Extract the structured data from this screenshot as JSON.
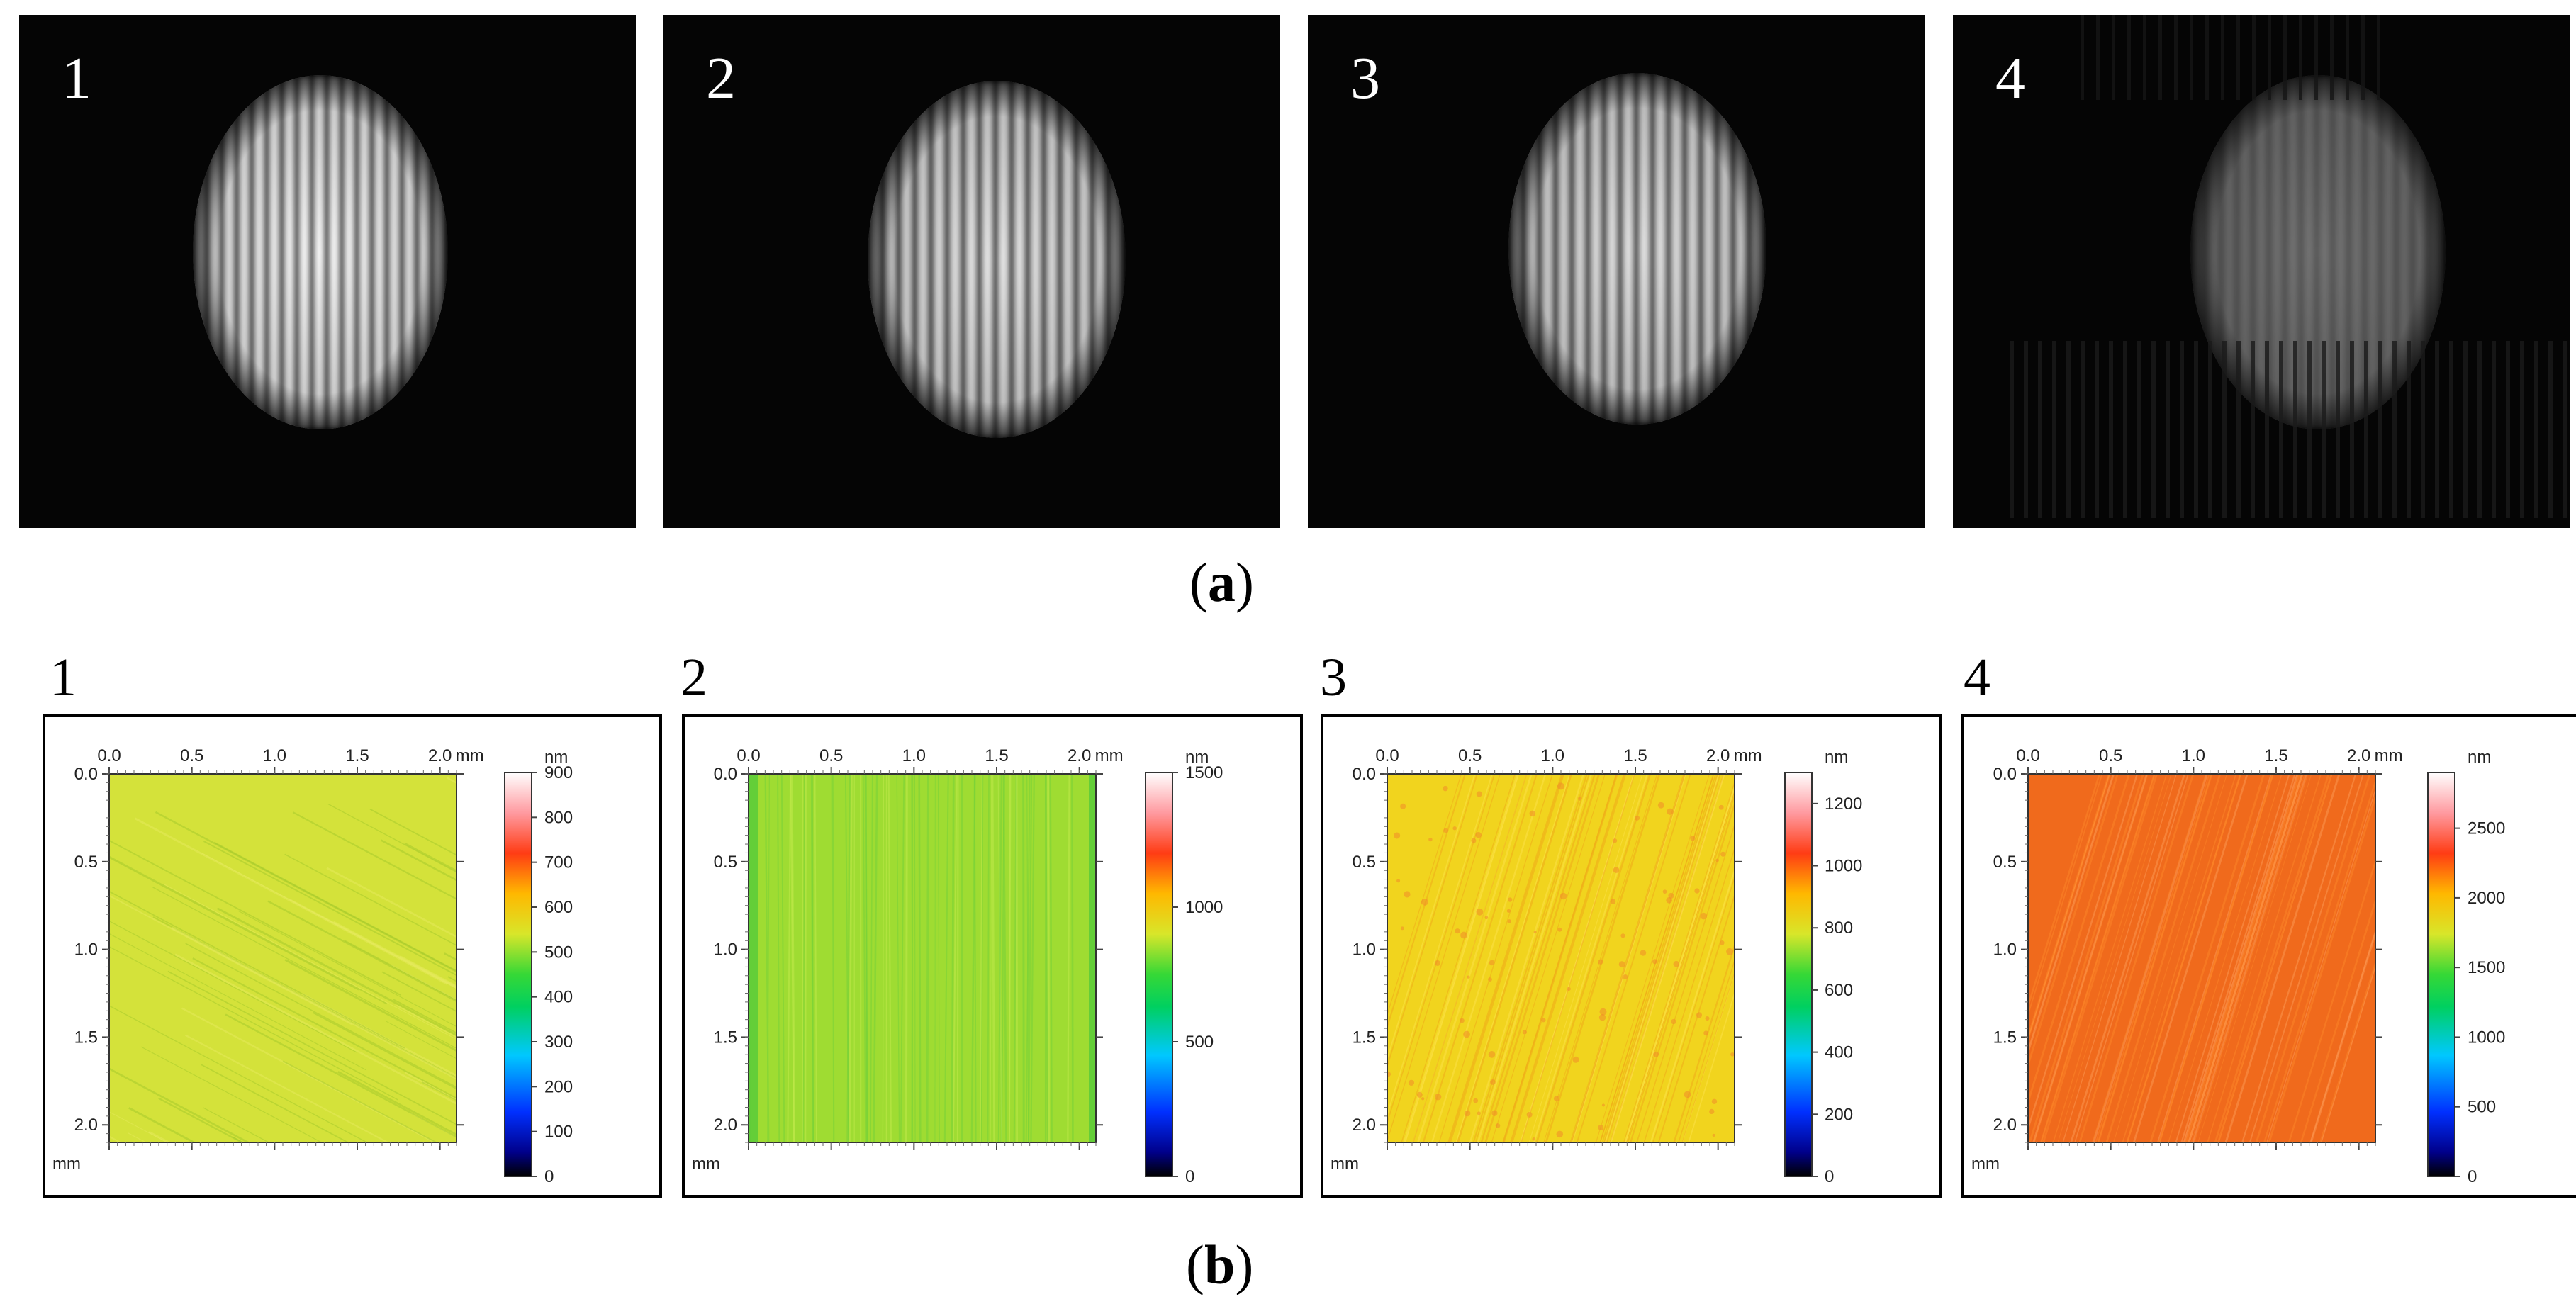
{
  "figure": {
    "caption_a": {
      "open": "(",
      "letter": "a",
      "close": ")"
    },
    "caption_b": {
      "open": "(",
      "letter": "b",
      "close": ")"
    }
  },
  "fringe_panels": [
    {
      "label": "1",
      "brightness": 1.0,
      "contrast": 1.0,
      "fringes": 17
    },
    {
      "label": "2",
      "brightness": 0.92,
      "contrast": 0.85,
      "fringes": 16
    },
    {
      "label": "3",
      "brightness": 0.9,
      "contrast": 0.8,
      "fringes": 16
    },
    {
      "label": "4",
      "brightness": 0.45,
      "contrast": 0.25,
      "fringes": 16
    }
  ],
  "chart_data": [
    {
      "type": "heatmap",
      "panel_label": "1",
      "x_ticks": [
        "0.0",
        "0.5",
        "1.0",
        "1.5",
        "2.0"
      ],
      "x_unit": "mm",
      "y_ticks": [
        "0.0",
        "0.5",
        "1.0",
        "1.5",
        "2.0"
      ],
      "y_unit": "mm",
      "xlim": [
        0,
        2.1
      ],
      "ylim": [
        0,
        2.1
      ],
      "colorbar_unit": "nm",
      "colorbar_ticks": [
        "0",
        "100",
        "200",
        "300",
        "400",
        "500",
        "600",
        "700",
        "800",
        "900"
      ],
      "colorbar_range": [
        0,
        900
      ],
      "surface_color": "#d4e23a",
      "texture": "diagonal scratches, mostly uniform yellow-green"
    },
    {
      "type": "heatmap",
      "panel_label": "2",
      "x_ticks": [
        "0.0",
        "0.5",
        "1.0",
        "1.5",
        "2.0"
      ],
      "x_unit": "mm",
      "y_ticks": [
        "0.0",
        "0.5",
        "1.0",
        "1.5",
        "2.0"
      ],
      "y_unit": "mm",
      "xlim": [
        0,
        2.1
      ],
      "ylim": [
        0,
        2.1
      ],
      "colorbar_unit": "nm",
      "colorbar_ticks": [
        "0",
        "500",
        "1000",
        "1500"
      ],
      "colorbar_range": [
        0,
        1500
      ],
      "surface_color": "#9fdc32",
      "texture": "vertical streaks, green"
    },
    {
      "type": "heatmap",
      "panel_label": "3",
      "x_ticks": [
        "0.0",
        "0.5",
        "1.0",
        "1.5",
        "2.0"
      ],
      "x_unit": "mm",
      "y_ticks": [
        "0.0",
        "0.5",
        "1.0",
        "1.5",
        "2.0"
      ],
      "y_unit": "mm",
      "xlim": [
        0,
        2.1
      ],
      "ylim": [
        0,
        2.1
      ],
      "colorbar_unit": "nm",
      "colorbar_ticks": [
        "0",
        "200",
        "400",
        "600",
        "800",
        "1000",
        "1200"
      ],
      "colorbar_range": [
        0,
        1300
      ],
      "surface_color": "#f1d41e",
      "texture": "diagonal streaks, yellow with orange speckles"
    },
    {
      "type": "heatmap",
      "panel_label": "4",
      "x_ticks": [
        "0.0",
        "0.5",
        "1.0",
        "1.5",
        "2.0"
      ],
      "x_unit": "mm",
      "y_ticks": [
        "0.0",
        "0.5",
        "1.0",
        "1.5",
        "2.0"
      ],
      "y_unit": "mm",
      "xlim": [
        0,
        2.1
      ],
      "ylim": [
        0,
        2.1
      ],
      "colorbar_unit": "nm",
      "colorbar_ticks": [
        "0",
        "500",
        "1000",
        "1500",
        "2000",
        "2500"
      ],
      "colorbar_range": [
        0,
        2900
      ],
      "surface_color": "#f06a1c",
      "texture": "diagonal streaks, orange"
    }
  ]
}
